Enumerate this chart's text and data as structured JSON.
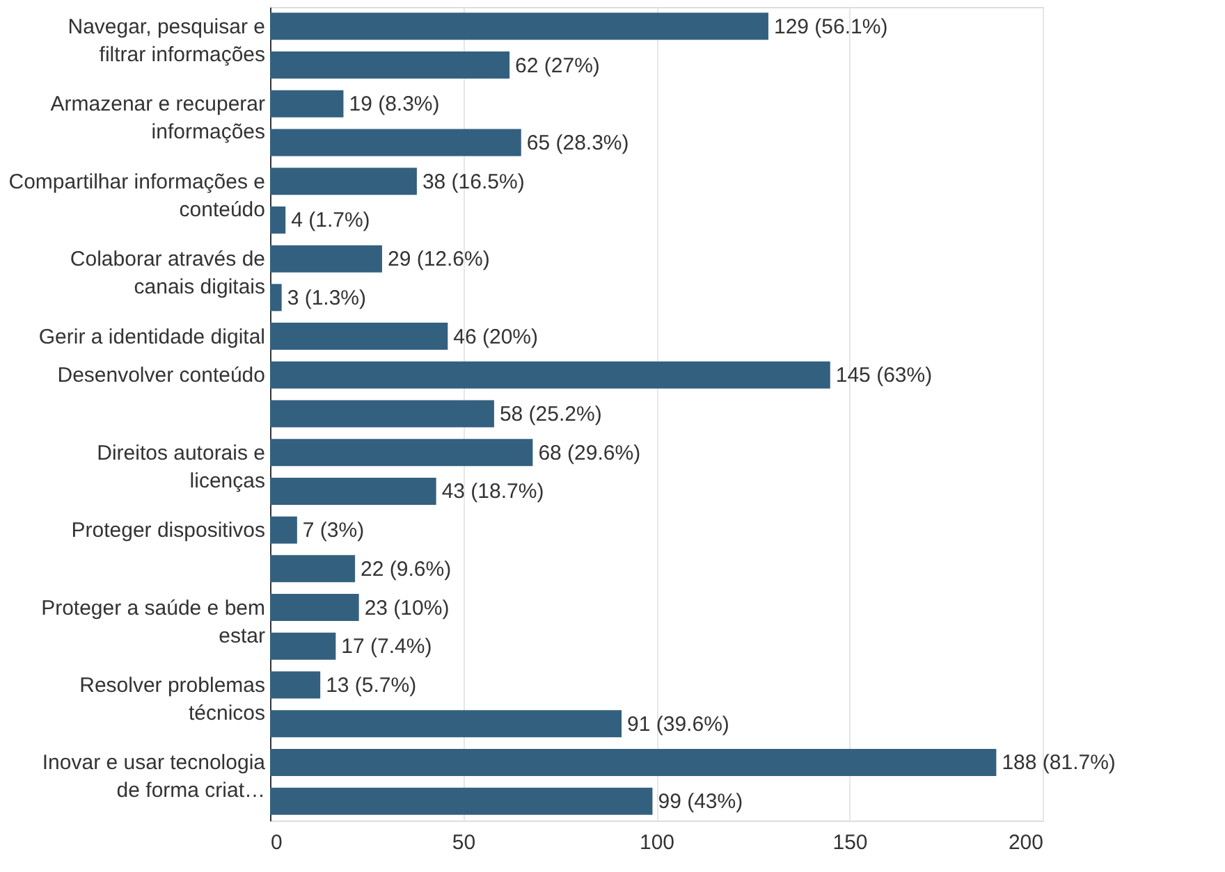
{
  "chart_data": {
    "type": "bar",
    "orientation": "horizontal",
    "categories": [
      "Navegar, pesquisar e filtrar informações",
      null,
      "Armazenar e recuperar informações",
      null,
      "Compartilhar informações e conteúdo",
      null,
      "Colaborar através de canais digitais",
      null,
      "Gerir a identidade digital",
      "Desenvolver conteúdo",
      null,
      "Direitos autorais e licenças",
      null,
      "Proteger dispositivos",
      null,
      "Proteger a saúde e bem estar",
      null,
      "Resolver problemas técnicos",
      null,
      "Inovar e usar tecnologia de forma criat…",
      null
    ],
    "values": [
      129,
      62,
      19,
      65,
      38,
      4,
      29,
      3,
      46,
      145,
      58,
      68,
      43,
      7,
      22,
      23,
      17,
      13,
      91,
      188,
      99
    ],
    "value_labels": [
      "129 (56.1%)",
      "62 (27%)",
      "19 (8.3%)",
      "65 (28.3%)",
      "38 (16.5%)",
      "4 (1.7%)",
      "29 (12.6%)",
      "3 (1.3%)",
      "46 (20%)",
      "145 (63%)",
      "58 (25.2%)",
      "68 (29.6%)",
      "43 (18.7%)",
      "7 (3%)",
      "22 (9.6%)",
      "23 (10%)",
      "17 (7.4%)",
      "13 (5.7%)",
      "91 (39.6%)",
      "188 (81.7%)",
      "99 (43%)"
    ],
    "color": "#34607f",
    "xlim": [
      0,
      200
    ],
    "xticks": [
      0,
      50,
      100,
      150,
      200
    ],
    "grid": "x"
  }
}
